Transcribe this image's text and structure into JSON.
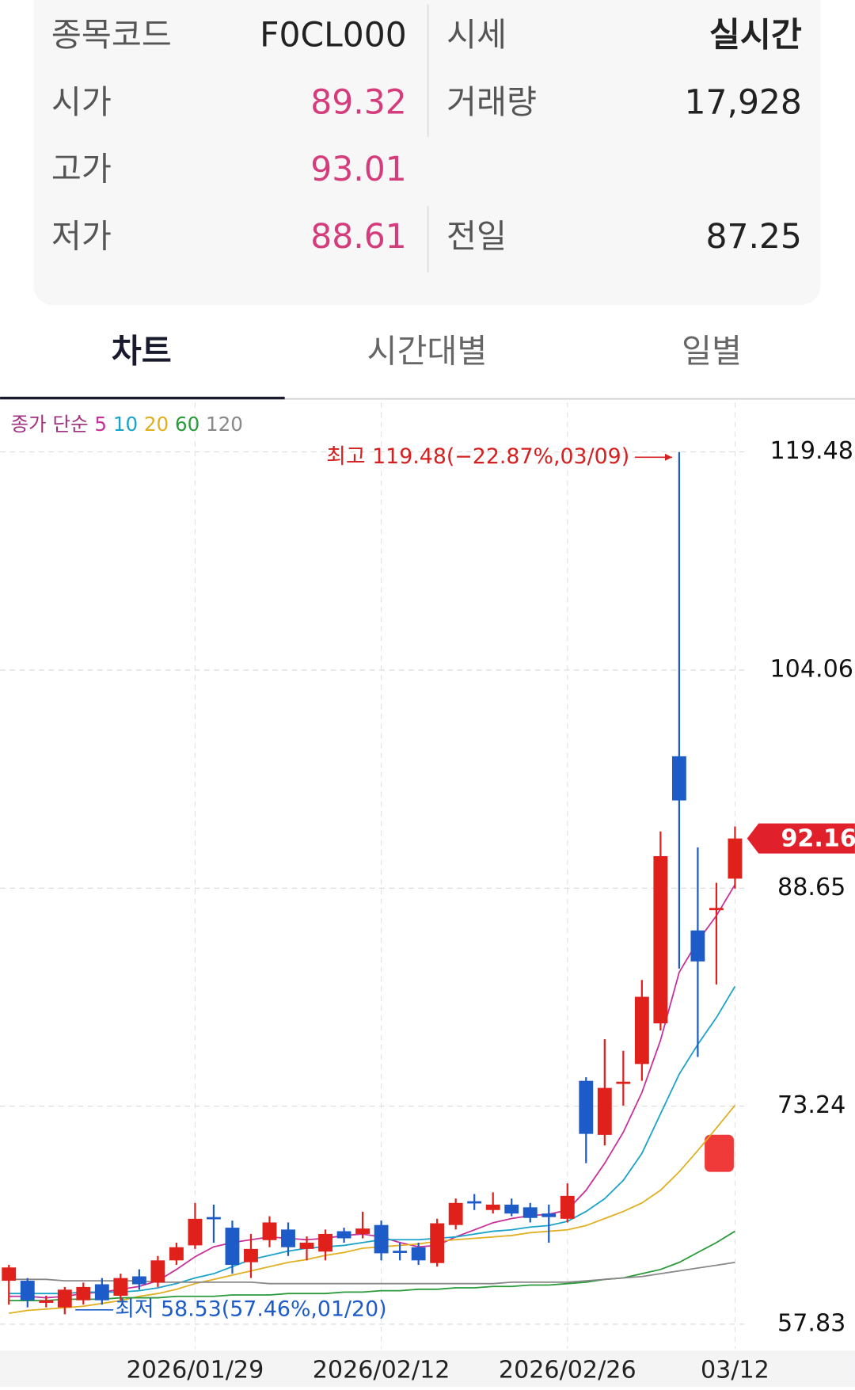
{
  "info": {
    "rows": [
      [
        {
          "label": "종목코드",
          "value": "F0CL000"
        },
        {
          "label": "시세",
          "value": "실시간"
        }
      ],
      [
        {
          "label": "시가",
          "value": "89.32"
        },
        {
          "label": "거래량",
          "value": "17,928"
        }
      ],
      [
        {
          "label": "고가",
          "value": "93.01"
        },
        null
      ],
      [
        {
          "label": "저가",
          "value": "88.61"
        },
        {
          "label": "전일",
          "value": "87.25"
        }
      ]
    ]
  },
  "tabs": [
    "차트",
    "시간대별",
    "일별"
  ],
  "chart_data": {
    "type": "candlestick",
    "legend_title": "종가 단순",
    "x": [
      null,
      null,
      null,
      null,
      null,
      null,
      null,
      null,
      null,
      null,
      "2026/01/29",
      null,
      null,
      null,
      null,
      null,
      null,
      null,
      null,
      null,
      "2026/02/12",
      null,
      null,
      null,
      null,
      null,
      null,
      null,
      null,
      null,
      "2026/02/26",
      null,
      null,
      null,
      null,
      null,
      null,
      null,
      null,
      "03/12"
    ],
    "open": [
      60.9,
      60.9,
      59.34,
      59.02,
      59.52,
      60.65,
      59.84,
      61.21,
      60.77,
      62.34,
      63.4,
      65.4,
      64.65,
      62.21,
      63.77,
      64.52,
      63.15,
      62.96,
      64.4,
      64.21,
      64.84,
      63.02,
      63.27,
      62.15,
      64.84,
      66.52,
      65.9,
      66.28,
      66.09,
      65.65,
      65.28,
      75.03,
      71.21,
      74.84,
      76.22,
      79.09,
      97.97,
      85.66,
      87.1,
      89.32
    ],
    "high": [
      62.02,
      61.09,
      59.84,
      60.46,
      60.77,
      61.09,
      61.4,
      61.71,
      62.65,
      63.59,
      66.4,
      66.28,
      65.15,
      64.21,
      65.46,
      65.02,
      64.03,
      64.52,
      64.65,
      65.78,
      65.15,
      63.59,
      63.59,
      65.28,
      66.71,
      67.03,
      67.15,
      66.71,
      66.4,
      66.28,
      67.78,
      75.28,
      77.97,
      77.15,
      82.16,
      92.66,
      119.48,
      91.53,
      89.03,
      93.01
    ],
    "low": [
      59.21,
      59.02,
      59.02,
      58.53,
      59.21,
      59.21,
      59.52,
      60.27,
      60.46,
      62.02,
      63.15,
      63.59,
      61.4,
      61.09,
      63.27,
      62.65,
      62.34,
      62.34,
      63.59,
      63.9,
      62.34,
      62.34,
      62.02,
      61.9,
      64.52,
      65.9,
      65.65,
      65.46,
      65.02,
      63.59,
      65.02,
      69.21,
      70.46,
      73.28,
      75.03,
      78.59,
      82.97,
      76.72,
      81.84,
      88.61
    ],
    "close": [
      61.84,
      59.52,
      59.52,
      60.27,
      60.46,
      59.52,
      61.09,
      60.65,
      62.34,
      63.27,
      65.28,
      65.28,
      62.02,
      63.15,
      65.02,
      63.27,
      63.59,
      64.21,
      63.9,
      64.59,
      62.84,
      62.96,
      62.34,
      64.96,
      66.4,
      66.4,
      66.28,
      65.65,
      65.34,
      65.4,
      66.9,
      71.28,
      74.53,
      74.97,
      80.97,
      90.91,
      94.85,
      83.47,
      87.25,
      92.16
    ],
    "up_color": "#e0201b",
    "down_color": "#1d5bc9",
    "series": [
      {
        "name": "5",
        "color": "#c9309a",
        "values": [
          59.8,
          59.8,
          59.7,
          59.8,
          60.0,
          60.1,
          60.3,
          60.5,
          60.9,
          61.7,
          62.6,
          63.3,
          63.6,
          63.8,
          64.0,
          63.9,
          63.8,
          63.9,
          64.1,
          64.2,
          64.0,
          63.6,
          63.3,
          63.4,
          64.0,
          64.5,
          65.0,
          65.3,
          65.5,
          65.6,
          65.9,
          67.3,
          69.2,
          71.4,
          74.2,
          77.9,
          82.7,
          84.9,
          86.7,
          88.9
        ]
      },
      {
        "name": "10",
        "color": "#1aa3c7",
        "values": [
          60.0,
          60.0,
          60.0,
          60.0,
          60.1,
          60.1,
          60.1,
          60.2,
          60.4,
          60.7,
          61.1,
          61.4,
          61.9,
          62.4,
          62.7,
          63.0,
          63.2,
          63.3,
          63.4,
          63.6,
          63.8,
          63.8,
          63.8,
          63.9,
          64.0,
          64.2,
          64.4,
          64.5,
          64.7,
          64.8,
          65.1,
          65.8,
          66.7,
          68.0,
          69.9,
          72.7,
          75.5,
          77.6,
          79.5,
          81.7
        ]
      },
      {
        "name": "20",
        "color": "#e0b020",
        "values": [
          58.6,
          58.8,
          58.9,
          59.0,
          59.1,
          59.3,
          59.5,
          59.8,
          60.0,
          60.3,
          60.7,
          61.0,
          61.3,
          61.6,
          61.9,
          62.2,
          62.4,
          62.7,
          62.9,
          63.2,
          63.3,
          63.4,
          63.5,
          63.7,
          63.8,
          63.9,
          64.0,
          64.1,
          64.3,
          64.4,
          64.5,
          64.8,
          65.3,
          65.8,
          66.4,
          67.3,
          68.6,
          70.1,
          71.7,
          73.3
        ]
      },
      {
        "name": "60",
        "color": "#2a9a3a",
        "values": [
          59.5,
          59.5,
          59.5,
          59.6,
          59.6,
          59.6,
          59.7,
          59.7,
          59.7,
          59.8,
          59.8,
          59.8,
          59.9,
          59.9,
          59.9,
          60.0,
          60.0,
          60.0,
          60.1,
          60.1,
          60.2,
          60.2,
          60.3,
          60.3,
          60.4,
          60.4,
          60.5,
          60.5,
          60.6,
          60.6,
          60.7,
          60.8,
          61.0,
          61.1,
          61.4,
          61.7,
          62.2,
          62.9,
          63.6,
          64.4
        ]
      },
      {
        "name": "120",
        "color": "#888888",
        "values": [
          61.0,
          61.0,
          61.0,
          60.9,
          60.9,
          60.9,
          60.9,
          60.9,
          60.8,
          60.8,
          60.8,
          60.8,
          60.8,
          60.8,
          60.7,
          60.7,
          60.7,
          60.7,
          60.7,
          60.7,
          60.7,
          60.7,
          60.7,
          60.7,
          60.7,
          60.7,
          60.7,
          60.8,
          60.8,
          60.8,
          60.8,
          60.9,
          61.0,
          61.1,
          61.2,
          61.4,
          61.6,
          61.8,
          62.0,
          62.2
        ]
      }
    ],
    "ylim": [
      56.09,
      122.98
    ],
    "yticks": [
      57.83,
      73.24,
      88.65,
      104.06,
      119.48
    ],
    "grid": true,
    "current_price": 92.16,
    "max_annotation": "최고 119.48(−22.87%,03/09)",
    "min_annotation": "최저 58.53(57.46%,01/20)"
  }
}
